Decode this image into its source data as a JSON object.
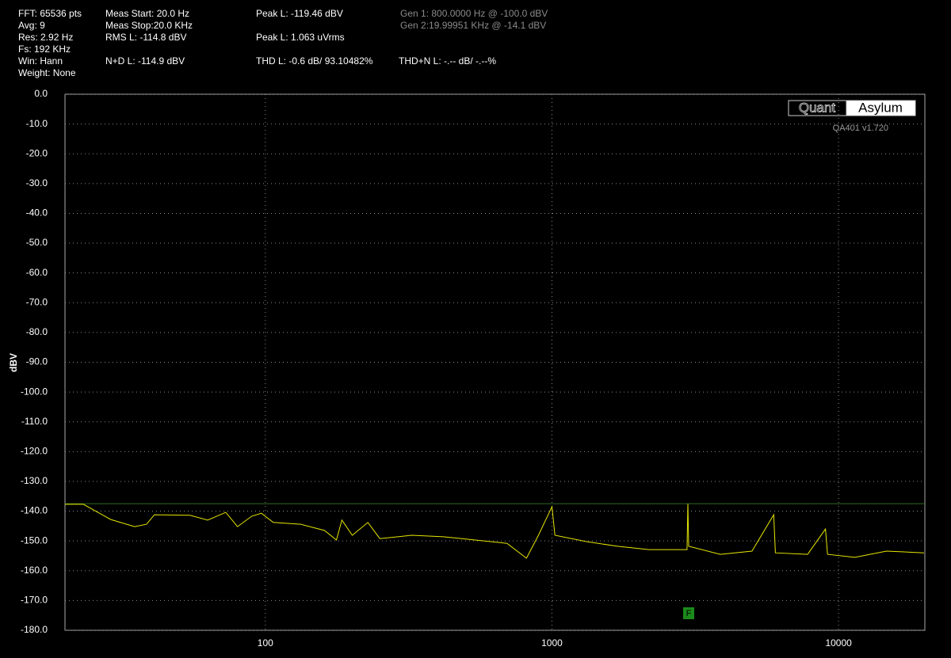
{
  "stats": [
    "FFT: 65536 pts",
    "Avg: 9",
    "Res: 2.92 Hz",
    "Fs: 192 KHz",
    "Win: Hann",
    "Weight: None"
  ],
  "meas": [
    "Meas Start: 20.0 Hz",
    "Meas Stop:20.0 KHz",
    "RMS L: -114.8 dBV",
    "N+D L: -114.9 dBV"
  ],
  "peak": [
    "Peak L: -119.46 dBV",
    "Peak L: 1.063 uVrms",
    "THD L: -0.6 dB/ 93.10482%"
  ],
  "gen": [
    "Gen 1: 800.0000 Hz @ -100.0  dBV",
    "Gen 2:19.99951 KHz @ -14.1  dBV"
  ],
  "thdn": "THD+N L: -.-- dB/ -.--%",
  "logo": {
    "left": "Quant",
    "right": "Asylum",
    "version": "QA401 v1.720"
  },
  "marker": "F",
  "chart_data": {
    "type": "line",
    "ylabel": "dBV",
    "xscale": "log",
    "grid": true,
    "xlim": [
      20,
      20000
    ],
    "xticks": [
      100,
      1000,
      10000
    ],
    "ylim": [
      -180,
      0
    ],
    "yticks": [
      {
        "value": 0,
        "label": "0.0"
      },
      {
        "value": -10,
        "label": "-10.0"
      },
      {
        "value": -20,
        "label": "-20.0"
      },
      {
        "value": -30,
        "label": "-30.0"
      },
      {
        "value": -40,
        "label": "-40.0"
      },
      {
        "value": -50,
        "label": "-50.0"
      },
      {
        "value": -60,
        "label": "-60.0"
      },
      {
        "value": -70,
        "label": "-70.0"
      },
      {
        "value": -80,
        "label": "-80.0"
      },
      {
        "value": -90,
        "label": "-90.0"
      },
      {
        "value": -100,
        "label": "-100.0"
      },
      {
        "value": -110,
        "label": "-110.0"
      },
      {
        "value": -120,
        "label": "-120.0"
      },
      {
        "value": -130,
        "label": "-130.0"
      },
      {
        "value": -140,
        "label": "-140.0"
      },
      {
        "value": -150,
        "label": "-150.0"
      },
      {
        "value": -160,
        "label": "-160.0"
      },
      {
        "value": -170,
        "label": "-170.0"
      },
      {
        "value": -180,
        "label": "-180.0"
      }
    ],
    "hline": {
      "value": -137.5,
      "color": "#2f6a1f"
    },
    "color": "#e6e600",
    "x": [
      20,
      23.2,
      28.9,
      35,
      38.5,
      41,
      54.6,
      62.9,
      72.8,
      80,
      89.7,
      96.9,
      106.6,
      133,
      161,
      177,
      185,
      201,
      228,
      251,
      324,
      418,
      540,
      697,
      815,
      897,
      1000,
      1024,
      1314,
      1692,
      2180,
      2960,
      2980,
      3000,
      3870,
      4990,
      5940,
      6020,
      7800,
      9000,
      9150,
      11400,
      14700,
      19860
    ],
    "values": [
      -137.7,
      -137.7,
      -142.8,
      -145.2,
      -144.4,
      -141.2,
      -141.4,
      -143.0,
      -140.4,
      -145.2,
      -141.7,
      -140.7,
      -143.8,
      -144.4,
      -146.5,
      -149.7,
      -143.0,
      -148.1,
      -143.8,
      -149.2,
      -148.1,
      -148.6,
      -149.7,
      -150.8,
      -155.8,
      -148.1,
      -138.5,
      -148.1,
      -150.2,
      -151.8,
      -152.9,
      -152.9,
      -137.5,
      -151.8,
      -154.5,
      -153.4,
      -141.2,
      -154.0,
      -154.5,
      -146.0,
      -154.5,
      -155.5,
      -153.4,
      -154.0
    ]
  }
}
